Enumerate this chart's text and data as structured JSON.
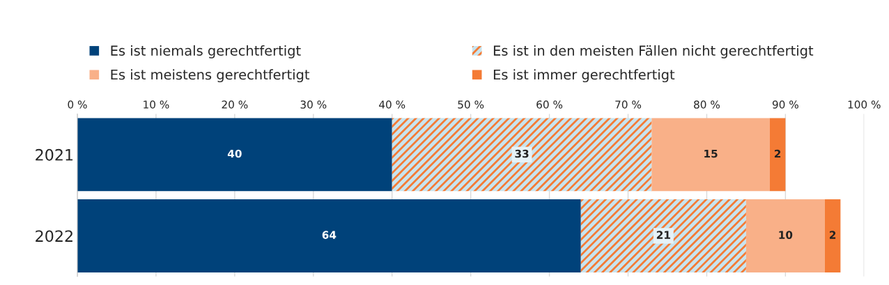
{
  "chart_data": {
    "type": "bar",
    "orientation": "horizontal",
    "stacked": true,
    "categories": [
      "2021",
      "2022"
    ],
    "series": [
      {
        "name": "Es ist niemals gerechtfertigt",
        "color": "#00427a",
        "values": [
          40,
          64
        ]
      },
      {
        "name": "Es ist in den meisten Fällen nicht gerechtfertigt",
        "color": "#f47b35",
        "values": [
          33,
          21
        ]
      },
      {
        "name": "Es ist meistens gerechtfertigt",
        "color": "#f9b088",
        "values": [
          15,
          10
        ]
      },
      {
        "name": "Es ist immer gerechtfertigt",
        "color": "#f47b35",
        "values": [
          2,
          2
        ]
      }
    ],
    "xlim": [
      0,
      100
    ],
    "xticks": [
      {
        "value": 0,
        "label": "0 %"
      },
      {
        "value": 10,
        "label": "10 %"
      },
      {
        "value": 20,
        "label": "20 %"
      },
      {
        "value": 30,
        "label": "30 %"
      },
      {
        "value": 40,
        "label": "40 %"
      },
      {
        "value": 50,
        "label": "50 %"
      },
      {
        "value": 60,
        "label": "60 %"
      },
      {
        "value": 70,
        "label": "70 %"
      },
      {
        "value": 80,
        "label": "80 %"
      },
      {
        "value": 90,
        "label": "90 %"
      },
      {
        "value": 100,
        "label": "100 %"
      }
    ],
    "grid": "x",
    "legend": "top",
    "data_labels": true
  }
}
